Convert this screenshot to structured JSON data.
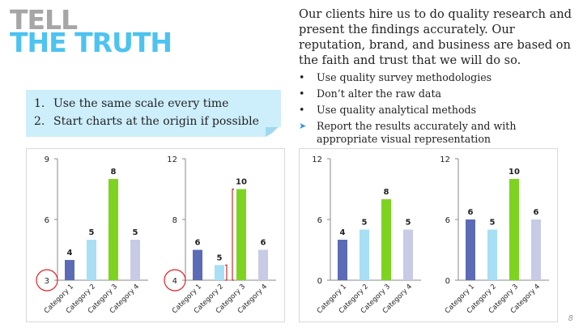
{
  "title": {
    "line1": "TELL",
    "line2": "THE TRUTH"
  },
  "intro": "Our clients hire us to do quality research and present the findings accurately.  Our reputation, brand, and business are based on the faith and trust that we will do so.",
  "bullets": [
    {
      "marker": "•",
      "text": "Use quality survey methodologies"
    },
    {
      "marker": "•",
      "text": "Don’t alter the raw data"
    },
    {
      "marker": "•",
      "text": "Use quality analytical methods"
    },
    {
      "marker": "➤",
      "text": "Report the results accurately and with appropriate visual representation"
    }
  ],
  "callout": [
    {
      "num": "1.",
      "text": "Use the same scale every time"
    },
    {
      "num": "2.",
      "text": "Start charts at the origin if possible"
    }
  ],
  "page_number": "8",
  "chart_data": [
    {
      "type": "bar",
      "categories": [
        "Category 1",
        "Category 2",
        "Category 3",
        "Category 4"
      ],
      "values": [
        4,
        5,
        8,
        5
      ],
      "ylim": [
        3,
        9
      ],
      "yticks": [
        3,
        6,
        9
      ],
      "data_labels": [
        "4",
        "5",
        "8",
        "5"
      ],
      "colors": [
        "#5b6bb5",
        "#a8dff5",
        "#7ed321",
        "#c7cbe6"
      ],
      "circled_origin": true
    },
    {
      "type": "bar",
      "categories": [
        "Category 1",
        "Category 2",
        "Category 3",
        "Category 4"
      ],
      "values": [
        6,
        5,
        10,
        6
      ],
      "ylim": [
        4,
        12
      ],
      "yticks": [
        4,
        8,
        12
      ],
      "data_labels": [
        "6",
        "5",
        "10",
        "6"
      ],
      "colors": [
        "#5b6bb5",
        "#a8dff5",
        "#7ed321",
        "#c7cbe6"
      ],
      "circled_origin": true,
      "brackets": true
    },
    {
      "type": "bar",
      "categories": [
        "Category 1",
        "Category 2",
        "Category 3",
        "Category 4"
      ],
      "values": [
        4,
        5,
        8,
        5
      ],
      "ylim": [
        0,
        12
      ],
      "yticks": [
        0,
        6,
        12
      ],
      "data_labels": [
        "4",
        "5",
        "8",
        "5"
      ],
      "colors": [
        "#5b6bb5",
        "#a8dff5",
        "#7ed321",
        "#c7cbe6"
      ]
    },
    {
      "type": "bar",
      "categories": [
        "Category 1",
        "Category 2",
        "Category 3",
        "Category 4"
      ],
      "values": [
        6,
        5,
        10,
        6
      ],
      "ylim": [
        0,
        12
      ],
      "yticks": [
        0,
        6,
        12
      ],
      "data_labels": [
        "6",
        "5",
        "10",
        "6"
      ],
      "colors": [
        "#5b6bb5",
        "#a8dff5",
        "#7ed321",
        "#c7cbe6"
      ]
    }
  ]
}
